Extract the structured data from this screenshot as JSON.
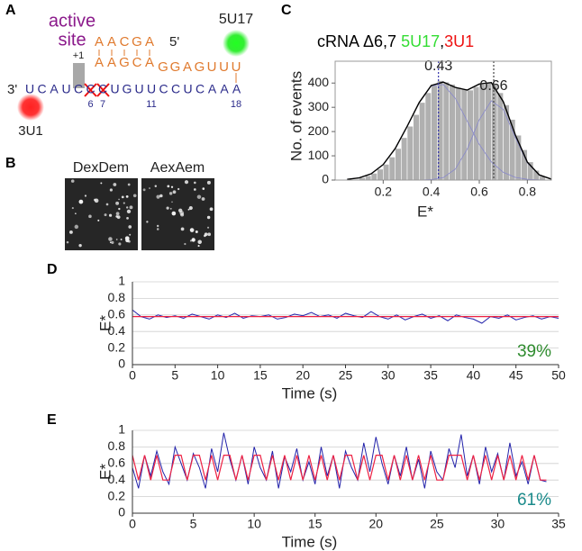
{
  "panels": {
    "a": "A",
    "b": "B",
    "c": "C",
    "d": "D",
    "e": "E"
  },
  "diagram": {
    "active": "active",
    "site": "site",
    "plus_one": "+1",
    "donor": "5U17",
    "acceptor": "3U1",
    "five_prime": "5'",
    "three_prime": "3'",
    "top_row_1": [
      "A",
      "A",
      "C",
      "G",
      "A"
    ],
    "top_row_2": [
      "A",
      "A",
      "G",
      "C",
      "A"
    ],
    "top_row_3": [
      "G",
      "G",
      "A",
      "G",
      "U",
      "U",
      "U"
    ],
    "bottom_strand": [
      "U",
      "C",
      "A",
      "U",
      "C",
      "C",
      "C",
      "U",
      "G",
      "U",
      "U",
      "C",
      "C",
      "U",
      "C",
      "A",
      "A",
      "A"
    ],
    "positions": [
      "6",
      "7",
      "11",
      "18"
    ]
  },
  "images": {
    "left": "DexDem",
    "right": "AexAem"
  },
  "chart_data": [
    {
      "type": "histogram",
      "title_parts": [
        {
          "text": "cRNA Δ6,7",
          "color": "#000000"
        },
        {
          "text": "5U17",
          "color": "#33dd33"
        },
        {
          "text": ",",
          "color": "#000000"
        },
        {
          "text": "3U1",
          "color": "#ee1111"
        }
      ],
      "x_label": "E*",
      "y_label": "No. of events",
      "bins": [
        0.1,
        0.125,
        0.15,
        0.175,
        0.2,
        0.225,
        0.25,
        0.275,
        0.3,
        0.325,
        0.35,
        0.375,
        0.4,
        0.425,
        0.45,
        0.475,
        0.5,
        0.525,
        0.55,
        0.575,
        0.6,
        0.625,
        0.65,
        0.675,
        0.7,
        0.725,
        0.75,
        0.775,
        0.8,
        0.825,
        0.85,
        0.875
      ],
      "counts": [
        10,
        18,
        28,
        45,
        65,
        95,
        130,
        175,
        222,
        270,
        320,
        360,
        390,
        410,
        404,
        395,
        382,
        375,
        371,
        385,
        395,
        400,
        395,
        360,
        310,
        250,
        185,
        125,
        75,
        40,
        15
      ],
      "color": "#b0b0b0",
      "fit": {
        "x": [
          0.05,
          0.1,
          0.15,
          0.2,
          0.25,
          0.3,
          0.35,
          0.4,
          0.45,
          0.5,
          0.55,
          0.6,
          0.65,
          0.7,
          0.75,
          0.8,
          0.85,
          0.9
        ],
        "values": [
          3,
          9,
          26,
          64,
          130,
          222,
          320,
          390,
          404,
          382,
          371,
          396,
          402,
          323,
          186,
          74,
          21,
          4
        ],
        "color": "#000000"
      },
      "components": [
        {
          "x": [
            0.05,
            0.1,
            0.15,
            0.2,
            0.25,
            0.3,
            0.35,
            0.4,
            0.45,
            0.5,
            0.55,
            0.6,
            0.65,
            0.7,
            0.75,
            0.8,
            0.85,
            0.9
          ],
          "values": [
            3,
            9,
            26,
            64,
            130,
            222,
            320,
            388,
            394,
            337,
            243,
            147,
            75,
            32,
            11,
            3,
            1,
            0
          ],
          "color": "#8888cc"
        },
        {
          "x": [
            0.35,
            0.4,
            0.45,
            0.5,
            0.55,
            0.6,
            0.65,
            0.7,
            0.75,
            0.8,
            0.85,
            0.9
          ],
          "values": [
            0,
            2,
            10,
            45,
            128,
            249,
            327,
            291,
            175,
            71,
            20,
            4
          ],
          "color": "#8888cc"
        }
      ],
      "markers": [
        0.43,
        0.66
      ],
      "marker_colors": [
        "#3333aa",
        "#444444"
      ],
      "xlim": [
        0,
        0.9
      ],
      "ylim": [
        0,
        490
      ],
      "xticks": [
        0.2,
        0.4,
        0.6,
        0.8
      ],
      "yticks": [
        0,
        100,
        200,
        300,
        400
      ]
    },
    {
      "type": "line",
      "x_label": "Time (s)",
      "y_label": "E*",
      "annotation": "39%",
      "annotation_color": "#2e8b2e",
      "series": [
        {
          "color": "#2222aa",
          "x": [
            0,
            1,
            2,
            3,
            4,
            5,
            6,
            7,
            8,
            9,
            10,
            11,
            12,
            13,
            14,
            15,
            16,
            17,
            18,
            19,
            20,
            21,
            22,
            23,
            24,
            25,
            26,
            27,
            28,
            29,
            30,
            31,
            32,
            33,
            34,
            35,
            36,
            37,
            38,
            39,
            40,
            41,
            42,
            43,
            44,
            45,
            46,
            47,
            48,
            49,
            50
          ],
          "values": [
            0.66,
            0.58,
            0.55,
            0.6,
            0.57,
            0.59,
            0.56,
            0.61,
            0.58,
            0.55,
            0.6,
            0.57,
            0.62,
            0.56,
            0.59,
            0.58,
            0.6,
            0.55,
            0.57,
            0.61,
            0.59,
            0.63,
            0.58,
            0.6,
            0.56,
            0.62,
            0.59,
            0.57,
            0.64,
            0.58,
            0.55,
            0.6,
            0.54,
            0.58,
            0.61,
            0.56,
            0.59,
            0.53,
            0.6,
            0.57,
            0.55,
            0.5,
            0.58,
            0.56,
            0.6,
            0.54,
            0.57,
            0.59,
            0.55,
            0.58,
            0.56
          ]
        },
        {
          "color": "#ee2244",
          "x": [
            0,
            50
          ],
          "values": [
            0.58,
            0.58
          ]
        }
      ],
      "xlim": [
        0,
        50
      ],
      "ylim": [
        0,
        1
      ],
      "xticks": [
        0,
        5,
        10,
        15,
        20,
        25,
        30,
        35,
        40,
        45,
        50
      ],
      "yticks": [
        0,
        0.2,
        0.4,
        0.6,
        0.8,
        1
      ],
      "grid": true
    },
    {
      "type": "line",
      "x_label": "Time (s)",
      "y_label": "E*",
      "annotation": "61%",
      "annotation_color": "#1a8a8a",
      "series": [
        {
          "color": "#2222aa",
          "x": [
            0,
            0.5,
            1,
            1.5,
            2,
            2.5,
            3,
            3.5,
            4,
            4.5,
            5,
            5.5,
            6,
            6.5,
            7,
            7.5,
            8,
            8.5,
            9,
            9.5,
            10,
            10.5,
            11,
            11.5,
            12,
            12.5,
            13,
            13.5,
            14,
            14.5,
            15,
            15.5,
            16,
            16.5,
            17,
            17.5,
            18,
            18.5,
            19,
            19.5,
            20,
            20.5,
            21,
            21.5,
            22,
            22.5,
            23,
            23.5,
            24,
            24.5,
            25,
            25.5,
            26,
            26.5,
            27,
            27.5,
            28,
            28.5,
            29,
            29.5,
            30,
            30.5,
            31,
            31.5,
            32,
            32.5,
            33,
            33.5,
            34
          ],
          "values": [
            0.55,
            0.3,
            0.7,
            0.45,
            0.75,
            0.5,
            0.35,
            0.8,
            0.6,
            0.4,
            0.72,
            0.55,
            0.3,
            0.78,
            0.5,
            0.97,
            0.65,
            0.4,
            0.7,
            0.35,
            0.8,
            0.55,
            0.4,
            0.75,
            0.3,
            0.68,
            0.5,
            0.78,
            0.4,
            0.62,
            0.35,
            0.8,
            0.45,
            0.7,
            0.3,
            0.75,
            0.55,
            0.4,
            0.85,
            0.5,
            0.92,
            0.6,
            0.35,
            0.7,
            0.45,
            0.8,
            0.4,
            0.65,
            0.3,
            0.75,
            0.5,
            0.4,
            0.78,
            0.55,
            0.95,
            0.45,
            0.7,
            0.35,
            0.8,
            0.5,
            0.72,
            0.4,
            0.85,
            0.45,
            0.62,
            0.35,
            0.7,
            0.4,
            0.38
          ]
        },
        {
          "color": "#ee2244",
          "x": [
            0,
            0.5,
            1,
            1.5,
            2,
            2.5,
            3,
            3.5,
            4,
            4.5,
            5,
            5.5,
            6,
            6.5,
            7,
            7.5,
            8,
            8.5,
            9,
            9.5,
            10,
            10.5,
            11,
            11.5,
            12,
            12.5,
            13,
            13.5,
            14,
            14.5,
            15,
            15.5,
            16,
            16.5,
            17,
            17.5,
            18,
            18.5,
            19,
            19.5,
            20,
            20.5,
            21,
            21.5,
            22,
            22.5,
            23,
            23.5,
            24,
            24.5,
            25,
            25.5,
            26,
            26.5,
            27,
            27.5,
            28,
            28.5,
            29,
            29.5,
            30,
            30.5,
            31,
            31.5,
            32,
            32.5,
            33,
            33.5,
            34
          ],
          "values": [
            0.7,
            0.4,
            0.7,
            0.4,
            0.7,
            0.4,
            0.4,
            0.7,
            0.7,
            0.4,
            0.7,
            0.7,
            0.4,
            0.7,
            0.4,
            0.7,
            0.7,
            0.4,
            0.7,
            0.4,
            0.7,
            0.7,
            0.4,
            0.7,
            0.4,
            0.7,
            0.4,
            0.7,
            0.4,
            0.7,
            0.4,
            0.7,
            0.4,
            0.7,
            0.4,
            0.7,
            0.7,
            0.4,
            0.7,
            0.4,
            0.7,
            0.7,
            0.4,
            0.7,
            0.4,
            0.7,
            0.4,
            0.7,
            0.4,
            0.7,
            0.4,
            0.4,
            0.7,
            0.7,
            0.7,
            0.4,
            0.7,
            0.4,
            0.7,
            0.4,
            0.7,
            0.4,
            0.7,
            0.4,
            0.7,
            0.4,
            0.7,
            0.4,
            0.4
          ]
        }
      ],
      "xlim": [
        0,
        35
      ],
      "ylim": [
        0,
        1
      ],
      "xticks": [
        0,
        5,
        10,
        15,
        20,
        25,
        30,
        35
      ],
      "yticks": [
        0,
        0.2,
        0.4,
        0.6,
        0.8,
        1
      ],
      "grid": true
    }
  ]
}
